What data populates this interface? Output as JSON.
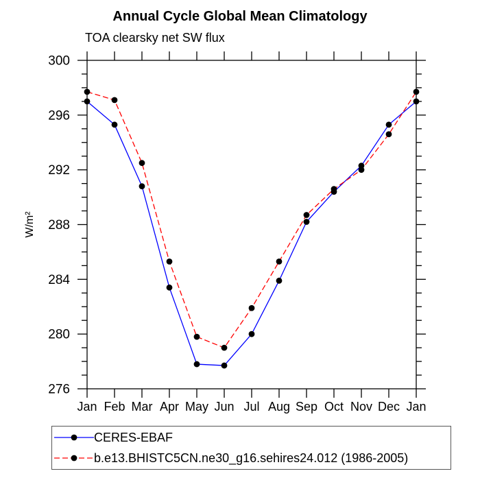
{
  "chart_data": {
    "type": "line",
    "title": "Annual Cycle Global Mean Climatology",
    "subtitle": "TOA clearsky net SW flux",
    "ylabel": "W/m²",
    "ylim": [
      276,
      300
    ],
    "ytick_major": 4,
    "ytick_minor": 1,
    "ytick_labels": [
      "276",
      "280",
      "284",
      "288",
      "292",
      "296",
      "300"
    ],
    "grid": false,
    "legend_position": "bottom-left",
    "categories": [
      "Jan",
      "Feb",
      "Mar",
      "Apr",
      "May",
      "Jun",
      "Jul",
      "Aug",
      "Sep",
      "Oct",
      "Nov",
      "Dec",
      "Jan"
    ],
    "series": [
      {
        "name": "CERES-EBAF",
        "color": "#0000ff",
        "line_style": "solid",
        "marker": "circle",
        "marker_color": "#000000",
        "values": [
          297.0,
          295.3,
          290.8,
          283.4,
          277.8,
          277.7,
          280.0,
          283.9,
          288.2,
          290.4,
          292.3,
          295.3,
          297.0
        ]
      },
      {
        "name": "b.e13.BHISTC5CN.ne30_g16.sehires24.012 (1986-2005)",
        "color": "#ff0000",
        "line_style": "dashed",
        "marker": "circle",
        "marker_color": "#000000",
        "values": [
          297.7,
          297.1,
          292.5,
          285.3,
          279.8,
          279.0,
          281.9,
          285.3,
          288.7,
          290.6,
          292.0,
          294.6,
          297.7
        ]
      }
    ],
    "axis_color": "#000000"
  }
}
